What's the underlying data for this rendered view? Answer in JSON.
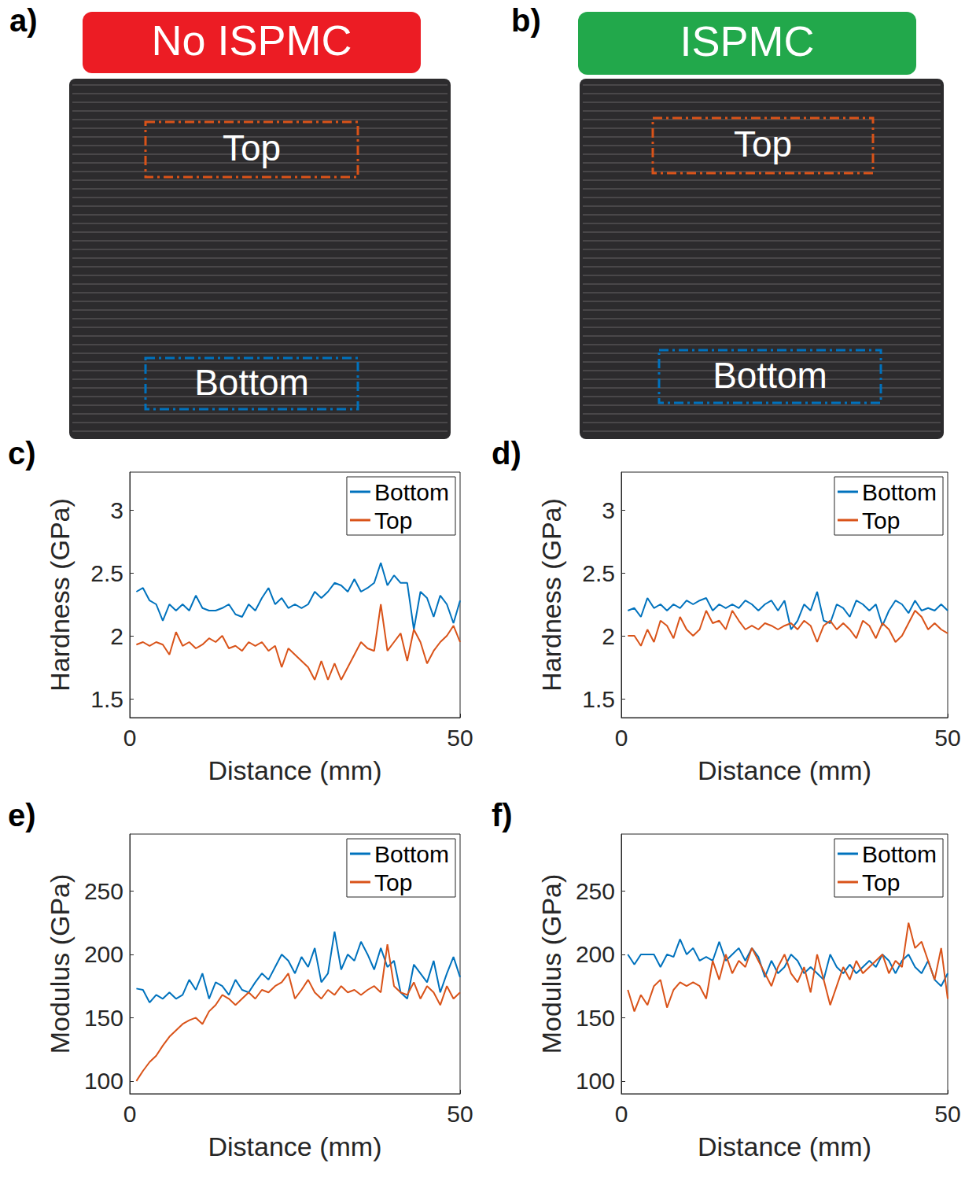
{
  "panels": [
    {
      "letter": "a)",
      "title": "No ISPMC",
      "title_color": "#ec1c24",
      "regions": [
        {
          "label": "Top",
          "color": "#d95319"
        },
        {
          "label": "Bottom",
          "color": "#0072bd"
        }
      ]
    },
    {
      "letter": "b)",
      "title": "ISPMC",
      "title_color": "#22a84b",
      "regions": [
        {
          "label": "Top",
          "color": "#d95319"
        },
        {
          "label": "Bottom",
          "color": "#0072bd"
        }
      ]
    }
  ],
  "chart_data": [
    {
      "letter": "c)",
      "type": "line",
      "xlabel": "Distance (mm)",
      "ylabel": "Hardness (GPa)",
      "xlim": [
        0,
        50
      ],
      "xticks": [
        0,
        50
      ],
      "ylim": [
        1.35,
        3.3
      ],
      "yticks": [
        1.5,
        2,
        2.5,
        3
      ],
      "grid": false,
      "legend": "upper right",
      "x": [
        1,
        2,
        3,
        4,
        5,
        6,
        7,
        8,
        9,
        10,
        11,
        12,
        13,
        14,
        15,
        16,
        17,
        18,
        19,
        20,
        21,
        22,
        23,
        24,
        25,
        26,
        27,
        28,
        29,
        30,
        31,
        32,
        33,
        34,
        35,
        36,
        37,
        38,
        39,
        40,
        41,
        42,
        43,
        44,
        45,
        46,
        47,
        48,
        49,
        50
      ],
      "series": [
        {
          "name": "Bottom",
          "color": "#0072bd",
          "values": [
            2.35,
            2.38,
            2.28,
            2.25,
            2.12,
            2.25,
            2.2,
            2.25,
            2.2,
            2.32,
            2.22,
            2.2,
            2.2,
            2.22,
            2.25,
            2.17,
            2.15,
            2.25,
            2.2,
            2.3,
            2.38,
            2.25,
            2.3,
            2.22,
            2.25,
            2.22,
            2.25,
            2.35,
            2.3,
            2.35,
            2.42,
            2.4,
            2.35,
            2.45,
            2.35,
            2.38,
            2.42,
            2.58,
            2.4,
            2.48,
            2.42,
            2.42,
            2.05,
            2.35,
            2.3,
            2.15,
            2.32,
            2.25,
            2.1,
            2.28
          ]
        },
        {
          "name": "Top",
          "color": "#d95319",
          "values": [
            1.93,
            1.95,
            1.92,
            1.95,
            1.93,
            1.85,
            2.03,
            1.92,
            1.95,
            1.9,
            1.93,
            1.98,
            1.95,
            2.0,
            1.9,
            1.92,
            1.88,
            1.95,
            1.92,
            1.95,
            1.88,
            1.92,
            1.75,
            1.9,
            1.85,
            1.8,
            1.75,
            1.65,
            1.8,
            1.65,
            1.78,
            1.65,
            1.75,
            1.85,
            1.95,
            1.9,
            1.88,
            2.25,
            1.88,
            1.95,
            2.02,
            1.8,
            2.05,
            1.95,
            1.78,
            1.88,
            1.95,
            2.0,
            2.08,
            1.95
          ]
        }
      ]
    },
    {
      "letter": "d)",
      "type": "line",
      "xlabel": "Distance (mm)",
      "ylabel": "Hardness (GPa)",
      "xlim": [
        0,
        50
      ],
      "xticks": [
        0,
        50
      ],
      "ylim": [
        1.35,
        3.3
      ],
      "yticks": [
        1.5,
        2,
        2.5,
        3
      ],
      "grid": false,
      "legend": "upper right",
      "x": [
        1,
        2,
        3,
        4,
        5,
        6,
        7,
        8,
        9,
        10,
        11,
        12,
        13,
        14,
        15,
        16,
        17,
        18,
        19,
        20,
        21,
        22,
        23,
        24,
        25,
        26,
        27,
        28,
        29,
        30,
        31,
        32,
        33,
        34,
        35,
        36,
        37,
        38,
        39,
        40,
        41,
        42,
        43,
        44,
        45,
        46,
        47,
        48,
        49,
        50
      ],
      "series": [
        {
          "name": "Bottom",
          "color": "#0072bd",
          "values": [
            2.2,
            2.22,
            2.15,
            2.3,
            2.22,
            2.25,
            2.2,
            2.25,
            2.22,
            2.28,
            2.25,
            2.28,
            2.3,
            2.2,
            2.25,
            2.22,
            2.25,
            2.22,
            2.28,
            2.25,
            2.2,
            2.25,
            2.28,
            2.2,
            2.28,
            2.05,
            2.12,
            2.25,
            2.2,
            2.35,
            2.12,
            2.1,
            2.25,
            2.22,
            2.15,
            2.28,
            2.25,
            2.2,
            2.25,
            2.08,
            2.2,
            2.28,
            2.25,
            2.18,
            2.28,
            2.2,
            2.22,
            2.2,
            2.25,
            2.2
          ]
        },
        {
          "name": "Top",
          "color": "#d95319",
          "values": [
            2.0,
            2.0,
            1.92,
            2.05,
            1.95,
            2.12,
            2.08,
            1.98,
            2.15,
            2.05,
            2.0,
            2.05,
            2.2,
            2.1,
            2.12,
            2.05,
            2.2,
            2.12,
            2.05,
            2.08,
            2.05,
            2.1,
            2.08,
            2.05,
            2.08,
            2.1,
            2.05,
            2.12,
            2.08,
            1.95,
            2.08,
            2.12,
            2.05,
            2.1,
            2.05,
            1.98,
            2.12,
            2.08,
            1.98,
            2.1,
            2.05,
            1.95,
            2.0,
            2.1,
            2.2,
            2.15,
            2.05,
            2.1,
            2.05,
            2.02
          ]
        }
      ]
    },
    {
      "letter": "e)",
      "type": "line",
      "xlabel": "Distance (mm)",
      "ylabel": "Modulus (GPa)",
      "xlim": [
        0,
        50
      ],
      "xticks": [
        0,
        50
      ],
      "ylim": [
        90,
        295
      ],
      "yticks": [
        100,
        150,
        200,
        250
      ],
      "grid": false,
      "legend": "upper right",
      "x": [
        1,
        2,
        3,
        4,
        5,
        6,
        7,
        8,
        9,
        10,
        11,
        12,
        13,
        14,
        15,
        16,
        17,
        18,
        19,
        20,
        21,
        22,
        23,
        24,
        25,
        26,
        27,
        28,
        29,
        30,
        31,
        32,
        33,
        34,
        35,
        36,
        37,
        38,
        39,
        40,
        41,
        42,
        43,
        44,
        45,
        46,
        47,
        48,
        49,
        50
      ],
      "series": [
        {
          "name": "Bottom",
          "color": "#0072bd",
          "values": [
            173,
            172,
            162,
            168,
            165,
            170,
            165,
            168,
            180,
            172,
            185,
            165,
            178,
            175,
            168,
            180,
            172,
            170,
            178,
            185,
            180,
            190,
            200,
            195,
            185,
            198,
            190,
            205,
            178,
            185,
            218,
            188,
            200,
            195,
            210,
            200,
            188,
            205,
            190,
            195,
            170,
            165,
            192,
            185,
            178,
            195,
            170,
            185,
            198,
            182
          ]
        },
        {
          "name": "Top",
          "color": "#d95319",
          "values": [
            100,
            108,
            115,
            120,
            128,
            135,
            140,
            145,
            148,
            150,
            145,
            155,
            160,
            168,
            165,
            160,
            165,
            170,
            165,
            172,
            170,
            175,
            178,
            185,
            165,
            172,
            180,
            170,
            165,
            172,
            168,
            175,
            170,
            172,
            168,
            172,
            175,
            170,
            208,
            175,
            170,
            168,
            178,
            165,
            175,
            170,
            160,
            175,
            165,
            170
          ]
        }
      ]
    },
    {
      "letter": "f)",
      "type": "line",
      "xlabel": "Distance (mm)",
      "ylabel": "Modulus (GPa)",
      "xlim": [
        0,
        50
      ],
      "xticks": [
        0,
        50
      ],
      "ylim": [
        90,
        295
      ],
      "yticks": [
        100,
        150,
        200,
        250
      ],
      "grid": false,
      "legend": "upper right",
      "x": [
        1,
        2,
        3,
        4,
        5,
        6,
        7,
        8,
        9,
        10,
        11,
        12,
        13,
        14,
        15,
        16,
        17,
        18,
        19,
        20,
        21,
        22,
        23,
        24,
        25,
        26,
        27,
        28,
        29,
        30,
        31,
        32,
        33,
        34,
        35,
        36,
        37,
        38,
        39,
        40,
        41,
        42,
        43,
        44,
        45,
        46,
        47,
        48,
        49,
        50
      ],
      "series": [
        {
          "name": "Bottom",
          "color": "#0072bd",
          "values": [
            200,
            192,
            200,
            200,
            200,
            190,
            200,
            198,
            212,
            200,
            205,
            195,
            198,
            195,
            210,
            195,
            200,
            205,
            195,
            205,
            198,
            182,
            195,
            185,
            190,
            200,
            195,
            185,
            190,
            185,
            180,
            200,
            190,
            185,
            192,
            185,
            190,
            195,
            190,
            200,
            195,
            185,
            195,
            200,
            190,
            185,
            195,
            180,
            175,
            185
          ]
        },
        {
          "name": "Top",
          "color": "#d95319",
          "values": [
            172,
            155,
            168,
            160,
            175,
            180,
            158,
            172,
            178,
            175,
            178,
            175,
            165,
            195,
            180,
            200,
            185,
            195,
            190,
            205,
            195,
            185,
            175,
            190,
            200,
            185,
            178,
            190,
            170,
            200,
            180,
            160,
            175,
            190,
            180,
            195,
            185,
            190,
            195,
            200,
            185,
            195,
            190,
            225,
            205,
            210,
            195,
            180,
            205,
            165
          ]
        }
      ]
    }
  ]
}
